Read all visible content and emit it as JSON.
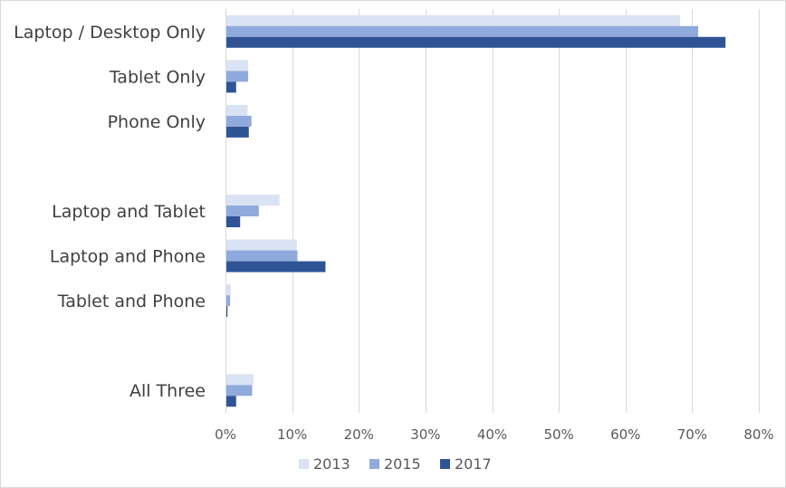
{
  "chart_data": {
    "type": "bar",
    "orientation": "horizontal",
    "title": "",
    "xlabel": "",
    "ylabel": "",
    "xlim": [
      0,
      80
    ],
    "x_ticks": [
      0,
      10,
      20,
      30,
      40,
      50,
      60,
      70,
      80
    ],
    "x_tick_labels": [
      "0%",
      "10%",
      "20%",
      "30%",
      "40%",
      "50%",
      "60%",
      "70%",
      "80%"
    ],
    "grid": true,
    "legend_position": "bottom",
    "categories": [
      "Laptop / Desktop Only",
      "Tablet Only",
      "Phone Only",
      "",
      "Laptop and Tablet",
      "Laptop and Phone",
      "Tablet and Phone",
      "",
      "All Three"
    ],
    "series": [
      {
        "name": "2013",
        "color": "#dae3f3",
        "values": [
          68.2,
          3.4,
          3.3,
          null,
          8.1,
          10.7,
          0.8,
          null,
          4.2
        ]
      },
      {
        "name": "2015",
        "color": "#8faadc",
        "values": [
          70.9,
          3.4,
          3.9,
          null,
          5.0,
          10.8,
          0.7,
          null,
          4.0
        ]
      },
      {
        "name": "2017",
        "color": "#2f5496",
        "values": [
          75.0,
          1.6,
          3.5,
          null,
          2.2,
          15.0,
          0.3,
          null,
          1.6
        ]
      }
    ]
  }
}
